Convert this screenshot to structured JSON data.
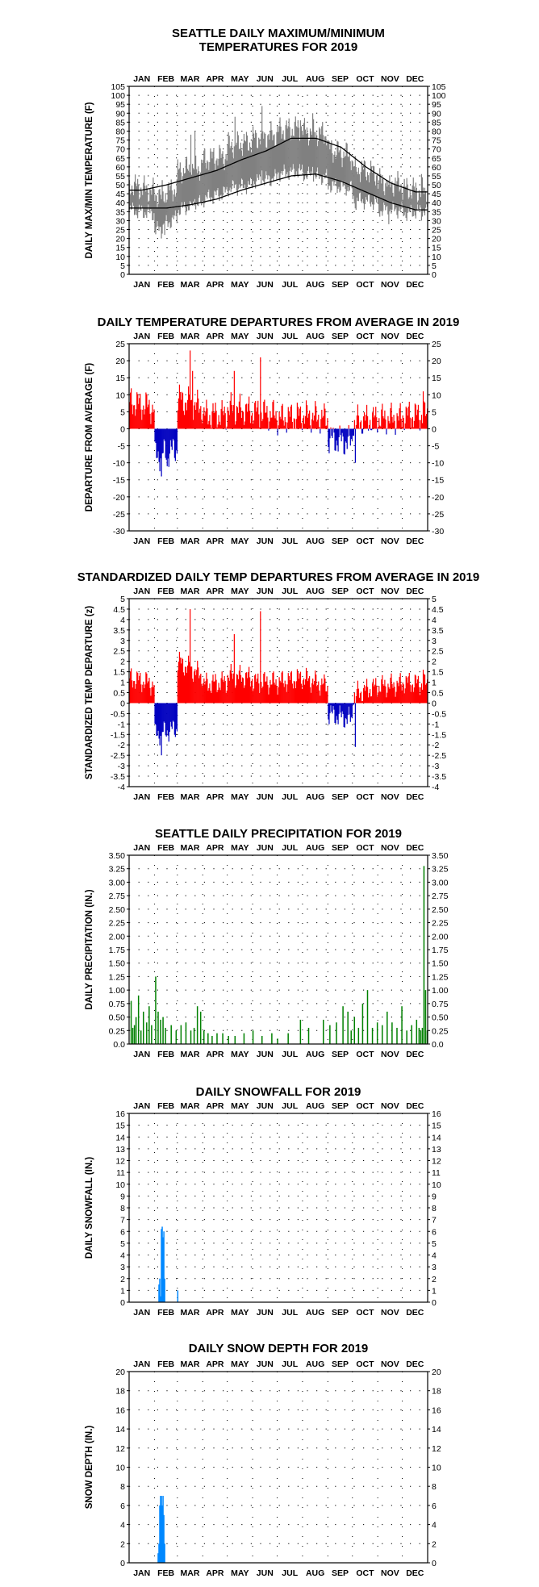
{
  "months": [
    "JAN",
    "FEB",
    "MAR",
    "APR",
    "MAY",
    "JUN",
    "JUL",
    "AUG",
    "SEP",
    "OCT",
    "NOV",
    "DEC"
  ],
  "chart_data": [
    {
      "id": "temps",
      "type": "line",
      "title": [
        "SEATTLE DAILY MAXIMUM/MINIMUM",
        "TEMPERATURES FOR 2019"
      ],
      "ylabel": "DAILY MAX/MIN TEMPERATURE (F)",
      "ylim": [
        0,
        105
      ],
      "yticks": [
        0,
        5,
        10,
        15,
        20,
        25,
        30,
        35,
        40,
        45,
        50,
        55,
        60,
        65,
        70,
        75,
        80,
        85,
        90,
        95,
        100,
        105
      ],
      "series": [
        {
          "role": "observed-range",
          "color": "#808080",
          "segments": [
            {
              "start": 1,
              "end": 31,
              "max": [
                50,
                46
              ],
              "min": [
                36,
                34
              ]
            },
            {
              "start": 32,
              "end": 59,
              "max": [
                44,
                48
              ],
              "min": [
                24,
                32
              ]
            },
            {
              "start": 60,
              "end": 90,
              "max": [
                58,
                60
              ],
              "min": [
                36,
                40
              ]
            },
            {
              "start": 91,
              "end": 120,
              "max": [
                64,
                66
              ],
              "min": [
                42,
                46
              ]
            },
            {
              "start": 121,
              "end": 151,
              "max": [
                72,
                74
              ],
              "min": [
                48,
                50
              ]
            },
            {
              "start": 152,
              "end": 181,
              "max": [
                76,
                78
              ],
              "min": [
                52,
                54
              ]
            },
            {
              "start": 182,
              "end": 212,
              "max": [
                80,
                82
              ],
              "min": [
                56,
                58
              ]
            },
            {
              "start": 213,
              "end": 243,
              "max": [
                80,
                78
              ],
              "min": [
                56,
                54
              ]
            },
            {
              "start": 244,
              "end": 273,
              "max": [
                70,
                66
              ],
              "min": [
                50,
                48
              ]
            },
            {
              "start": 274,
              "end": 304,
              "max": [
                60,
                56
              ],
              "min": [
                42,
                40
              ]
            },
            {
              "start": 305,
              "end": 334,
              "max": [
                52,
                50
              ],
              "min": [
                36,
                36
              ]
            },
            {
              "start": 335,
              "end": 365,
              "max": [
                48,
                46
              ],
              "min": [
                34,
                36
              ]
            }
          ],
          "highlights": [
            {
              "day": 40,
              "max": 42,
              "min": 20
            },
            {
              "day": 44,
              "max": 40,
              "min": 22
            },
            {
              "day": 76,
              "max": 78,
              "min": 40
            },
            {
              "day": 81,
              "max": 80,
              "min": 42
            },
            {
              "day": 130,
              "max": 88,
              "min": 50
            },
            {
              "day": 163,
              "max": 94,
              "min": 58
            },
            {
              "day": 210,
              "max": 86,
              "min": 58
            },
            {
              "day": 225,
              "max": 90,
              "min": 60
            },
            {
              "day": 278,
              "max": 60,
              "min": 36
            },
            {
              "day": 318,
              "max": 50,
              "min": 28
            },
            {
              "day": 358,
              "max": 56,
              "min": 30
            }
          ]
        },
        {
          "role": "normal-max",
          "color": "#000000",
          "monthly": [
            47,
            50,
            54,
            58,
            64,
            69,
            76,
            76,
            71,
            60,
            51,
            46
          ]
        },
        {
          "role": "normal-min",
          "color": "#000000",
          "monthly": [
            37,
            37,
            39,
            42,
            47,
            51,
            55,
            56,
            52,
            46,
            40,
            36
          ]
        }
      ]
    },
    {
      "id": "departures",
      "type": "bar",
      "title": [
        "DAILY TEMPERATURE DEPARTURES FROM AVERAGE IN 2019"
      ],
      "ylabel": "DEPARTURE FROM AVERAGE (F)",
      "ylim": [
        -30,
        25
      ],
      "yticks": [
        -30,
        -25,
        -20,
        -15,
        -10,
        -5,
        0,
        5,
        10,
        15,
        20,
        25
      ],
      "positive_color": "#ff0000",
      "negative_color": "#0000c0",
      "segments": [
        {
          "start": 1,
          "end": 31,
          "values": [
            8,
            6
          ]
        },
        {
          "start": 32,
          "end": 59,
          "values": [
            -8,
            -6
          ]
        },
        {
          "start": 60,
          "end": 90,
          "values": [
            9,
            6
          ]
        },
        {
          "start": 91,
          "end": 120,
          "values": [
            4,
            4
          ]
        },
        {
          "start": 121,
          "end": 151,
          "values": [
            6,
            5
          ]
        },
        {
          "start": 152,
          "end": 181,
          "values": [
            5,
            4
          ]
        },
        {
          "start": 182,
          "end": 212,
          "values": [
            3,
            4
          ]
        },
        {
          "start": 213,
          "end": 243,
          "values": [
            4,
            3
          ]
        },
        {
          "start": 244,
          "end": 273,
          "values": [
            -3,
            -4
          ]
        },
        {
          "start": 274,
          "end": 304,
          "values": [
            2,
            3
          ]
        },
        {
          "start": 305,
          "end": 334,
          "values": [
            3,
            3
          ]
        },
        {
          "start": 335,
          "end": 365,
          "values": [
            4,
            4
          ]
        }
      ],
      "highlights": [
        {
          "day": 40,
          "value": -14
        },
        {
          "day": 47,
          "value": -11
        },
        {
          "day": 75,
          "value": 23
        },
        {
          "day": 78,
          "value": 17
        },
        {
          "day": 129,
          "value": 17
        },
        {
          "day": 161,
          "value": 21
        },
        {
          "day": 277,
          "value": -10
        },
        {
          "day": 360,
          "value": 11
        }
      ]
    },
    {
      "id": "standardized",
      "type": "bar",
      "title": [
        "STANDARDIZED DAILY TEMP DEPARTURES FROM AVERAGE IN 2019"
      ],
      "ylabel": "STANDARDIZED TEMP DEPARTURE (z)",
      "ylim": [
        -4.0,
        5.0
      ],
      "yticks": [
        -4.0,
        -3.5,
        -3.0,
        -2.5,
        -2.0,
        -1.5,
        -1.0,
        -0.5,
        0.0,
        0.5,
        1.0,
        1.5,
        2.0,
        2.5,
        3.0,
        3.5,
        4.0,
        4.5,
        5.0
      ],
      "positive_color": "#ff0000",
      "negative_color": "#0000c0",
      "segments": [
        {
          "start": 1,
          "end": 31,
          "values": [
            1.2,
            0.9
          ]
        },
        {
          "start": 32,
          "end": 59,
          "values": [
            -1.5,
            -1.2
          ]
        },
        {
          "start": 60,
          "end": 90,
          "values": [
            2.0,
            1.3
          ]
        },
        {
          "start": 91,
          "end": 120,
          "values": [
            0.9,
            1.0
          ]
        },
        {
          "start": 121,
          "end": 151,
          "values": [
            1.3,
            1.2
          ]
        },
        {
          "start": 152,
          "end": 181,
          "values": [
            1.0,
            1.0
          ]
        },
        {
          "start": 182,
          "end": 212,
          "values": [
            1.0,
            1.2
          ]
        },
        {
          "start": 213,
          "end": 243,
          "values": [
            1.2,
            0.8
          ]
        },
        {
          "start": 244,
          "end": 273,
          "values": [
            -0.5,
            -0.8
          ]
        },
        {
          "start": 274,
          "end": 304,
          "values": [
            0.4,
            0.8
          ]
        },
        {
          "start": 305,
          "end": 334,
          "values": [
            0.8,
            0.9
          ]
        },
        {
          "start": 335,
          "end": 365,
          "values": [
            1.0,
            0.9
          ]
        }
      ],
      "highlights": [
        {
          "day": 40,
          "value": -2.5
        },
        {
          "day": 75,
          "value": 4.5
        },
        {
          "day": 129,
          "value": 3.3
        },
        {
          "day": 161,
          "value": 4.4
        },
        {
          "day": 277,
          "value": -2.1
        },
        {
          "day": 360,
          "value": 1.6
        }
      ]
    },
    {
      "id": "precip",
      "type": "bar",
      "title": [
        "SEATTLE DAILY PRECIPITATION FOR 2019"
      ],
      "ylabel": "DAILY PRECIPITATION (IN.)",
      "ylim": [
        0,
        3.5
      ],
      "yticks": [
        "0.0",
        "0.25",
        "0.50",
        "0.75",
        "1.00",
        "1.25",
        "1.50",
        "1.75",
        "2.00",
        "2.25",
        "2.50",
        "2.75",
        "3.00",
        "3.25",
        "3.50"
      ],
      "color": "#008000",
      "days": [
        3,
        5,
        7,
        9,
        12,
        15,
        18,
        22,
        25,
        28,
        33,
        36,
        39,
        42,
        45,
        52,
        58,
        64,
        70,
        76,
        80,
        84,
        88,
        92,
        97,
        102,
        108,
        115,
        122,
        130,
        141,
        152,
        163,
        175,
        182,
        195,
        210,
        220,
        238,
        246,
        254,
        262,
        268,
        272,
        276,
        281,
        286,
        292,
        298,
        304,
        310,
        316,
        322,
        328,
        334,
        340,
        346,
        352,
        355,
        357,
        359,
        361,
        363,
        365
      ],
      "values": [
        0.8,
        0.3,
        0.35,
        0.5,
        0.9,
        0.25,
        0.6,
        0.4,
        0.7,
        0.35,
        1.25,
        0.6,
        0.45,
        0.5,
        0.3,
        0.35,
        0.25,
        0.35,
        0.4,
        0.25,
        0.3,
        0.7,
        0.6,
        0.25,
        0.2,
        0.15,
        0.2,
        0.2,
        0.15,
        0.15,
        0.2,
        0.25,
        0.15,
        0.2,
        0.1,
        0.2,
        0.45,
        0.3,
        0.45,
        0.35,
        0.4,
        0.7,
        0.6,
        0.25,
        0.5,
        0.3,
        0.75,
        1.0,
        0.3,
        0.4,
        0.35,
        0.6,
        0.4,
        0.3,
        0.7,
        0.25,
        0.35,
        0.45,
        0.3,
        0.25,
        0.3,
        3.3,
        1.0,
        0.25
      ]
    },
    {
      "id": "snowfall",
      "type": "bar",
      "title": [
        "DAILY SNOWFALL FOR 2019"
      ],
      "ylabel": "DAILY SNOWFALL (IN.)",
      "ylim": [
        0,
        16
      ],
      "yticks": [
        0,
        1,
        2,
        3,
        4,
        5,
        6,
        7,
        8,
        9,
        10,
        11,
        12,
        13,
        14,
        15,
        16
      ],
      "color": "#0088ff",
      "days": [
        37,
        38,
        39,
        40,
        41,
        42,
        43,
        44,
        60
      ],
      "values": [
        1.5,
        2.0,
        0.5,
        6.2,
        6.4,
        5.5,
        6.0,
        2.0,
        1.0
      ]
    },
    {
      "id": "snowdepth",
      "type": "bar",
      "title": [
        "DAILY SNOW DEPTH FOR 2019"
      ],
      "ylabel": "SNOW DEPTH (IN.)",
      "ylim": [
        0,
        20
      ],
      "yticks": [
        0,
        2,
        4,
        6,
        8,
        10,
        12,
        14,
        16,
        18,
        20
      ],
      "color": "#0088ff",
      "days": [
        36,
        37,
        38,
        39,
        40,
        41,
        42,
        43,
        44
      ],
      "values": [
        1,
        2,
        6,
        7,
        7,
        6,
        7,
        5,
        2
      ]
    }
  ]
}
